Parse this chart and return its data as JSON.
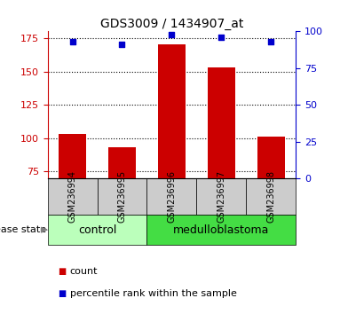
{
  "title": "GDS3009 / 1434907_at",
  "samples": [
    "GSM236994",
    "GSM236995",
    "GSM236996",
    "GSM236997",
    "GSM236998"
  ],
  "bar_values": [
    103,
    93,
    170,
    153,
    101
  ],
  "percentile_values": [
    93,
    91,
    98,
    96,
    93
  ],
  "ylim_left": [
    70,
    180
  ],
  "ylim_right": [
    0,
    100
  ],
  "yticks_left": [
    75,
    100,
    125,
    150,
    175
  ],
  "yticks_right": [
    0,
    25,
    50,
    75,
    100
  ],
  "bar_color": "#cc0000",
  "percentile_color": "#0000cc",
  "bar_width": 0.55,
  "disease_groups": [
    {
      "label": "control",
      "indices": [
        0,
        1
      ],
      "color": "#bbffbb"
    },
    {
      "label": "medulloblastoma",
      "indices": [
        2,
        3,
        4
      ],
      "color": "#44dd44"
    }
  ],
  "legend_count_label": "count",
  "legend_percentile_label": "percentile rank within the sample",
  "disease_state_label": "disease state",
  "tick_area_color": "#cccccc",
  "grid_dotted_color": "#000000",
  "title_fontsize": 10,
  "ytick_fontsize": 8,
  "sample_fontsize": 7,
  "disease_fontsize": 9,
  "legend_fontsize": 8
}
